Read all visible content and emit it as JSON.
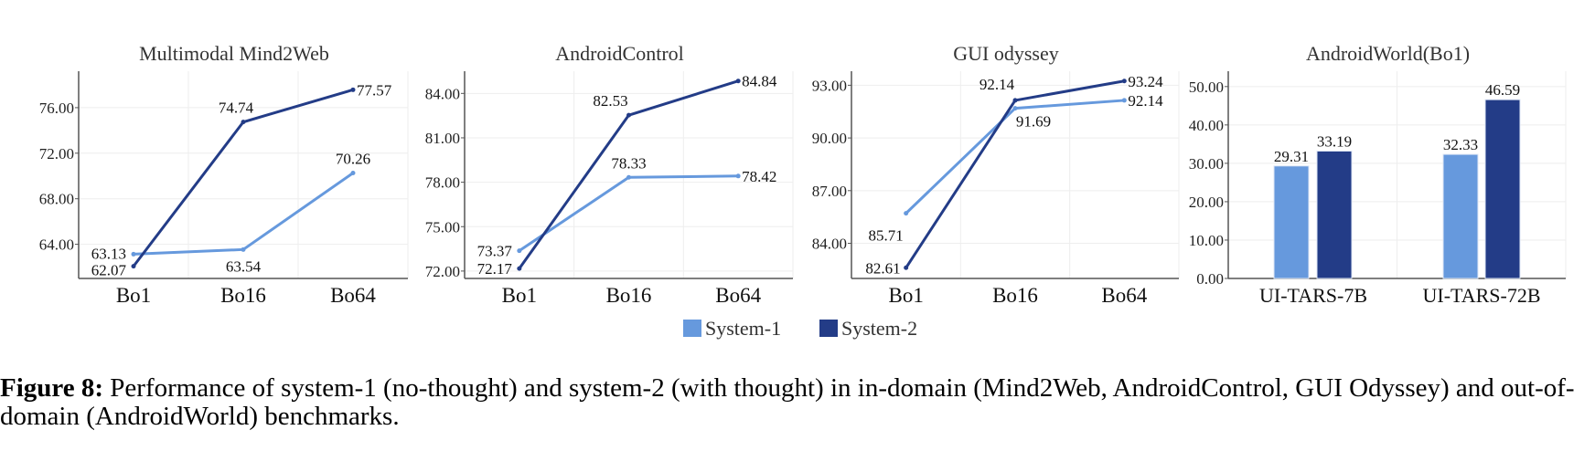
{
  "colors": {
    "system1": "#6699DD",
    "system2": "#233C87",
    "grid": "#EEEEEE",
    "axis": "#555555"
  },
  "legend": [
    {
      "label": "System-1",
      "color": "#6699DD"
    },
    {
      "label": "System-2",
      "color": "#233C87"
    }
  ],
  "chart_data": [
    {
      "type": "line",
      "title": "Multimodal Mind2Web",
      "categories": [
        "Bo1",
        "Bo16",
        "Bo64"
      ],
      "yticks": [
        "64.00",
        "68.00",
        "72.00",
        "76.00"
      ],
      "ylim": [
        61.0,
        79.2
      ],
      "series": [
        {
          "name": "System-1",
          "values": [
            63.13,
            63.54,
            70.26
          ],
          "labels": [
            "63.13",
            "63.54",
            "70.26"
          ]
        },
        {
          "name": "System-2",
          "values": [
            62.07,
            74.74,
            77.57
          ],
          "labels": [
            "62.07",
            "74.74",
            "77.57"
          ]
        }
      ]
    },
    {
      "type": "line",
      "title": "AndroidControl",
      "categories": [
        "Bo1",
        "Bo16",
        "Bo64"
      ],
      "yticks": [
        "72.00",
        "75.00",
        "78.00",
        "81.00",
        "84.00"
      ],
      "ylim": [
        71.5,
        85.5
      ],
      "series": [
        {
          "name": "System-1",
          "values": [
            73.37,
            78.33,
            78.42
          ],
          "labels": [
            "73.37",
            "78.33",
            "78.42"
          ]
        },
        {
          "name": "System-2",
          "values": [
            72.17,
            82.53,
            84.84
          ],
          "labels": [
            "72.17",
            "82.53",
            "84.84"
          ]
        }
      ]
    },
    {
      "type": "line",
      "title": "GUI odyssey",
      "categories": [
        "Bo1",
        "Bo16",
        "Bo64"
      ],
      "yticks": [
        "84.00",
        "87.00",
        "90.00",
        "93.00"
      ],
      "ylim": [
        82.0,
        93.8
      ],
      "series": [
        {
          "name": "System-1",
          "values": [
            85.71,
            91.69,
            92.14
          ],
          "labels": [
            "85.71",
            "91.69",
            "92.14"
          ]
        },
        {
          "name": "System-2",
          "values": [
            82.61,
            92.14,
            93.24
          ],
          "labels": [
            "82.61",
            "92.14",
            "93.24"
          ]
        }
      ]
    },
    {
      "type": "bar",
      "title": "AndroidWorld(Bo1)",
      "categories": [
        "UI-TARS-7B",
        "UI-TARS-72B"
      ],
      "yticks": [
        "0.00",
        "10.00",
        "20.00",
        "30.00",
        "40.00",
        "50.00"
      ],
      "ylim": [
        0,
        54
      ],
      "series": [
        {
          "name": "System-1",
          "values": [
            29.31,
            32.33
          ],
          "labels": [
            "29.31",
            "32.33"
          ]
        },
        {
          "name": "System-2",
          "values": [
            33.19,
            46.59
          ],
          "labels": [
            "33.19",
            "46.59"
          ]
        }
      ]
    }
  ],
  "caption": {
    "label": "Figure 8:",
    "text": "Performance of system-1 (no-thought) and system-2 (with thought) in in-domain (Mind2Web, AndroidControl, GUI Odyssey) and out-of-domain (AndroidWorld) benchmarks."
  }
}
